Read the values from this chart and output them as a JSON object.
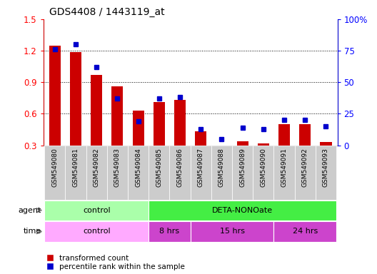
{
  "title": "GDS4408 / 1443119_at",
  "samples": [
    "GSM549080",
    "GSM549081",
    "GSM549082",
    "GSM549083",
    "GSM549084",
    "GSM549085",
    "GSM549086",
    "GSM549087",
    "GSM549088",
    "GSM549089",
    "GSM549090",
    "GSM549091",
    "GSM549092",
    "GSM549093"
  ],
  "transformed_count": [
    1.25,
    1.19,
    0.97,
    0.86,
    0.63,
    0.71,
    0.73,
    0.43,
    0.3,
    0.34,
    0.32,
    0.5,
    0.5,
    0.33
  ],
  "percentile_rank": [
    76,
    80,
    62,
    37,
    19,
    37,
    38,
    13,
    5,
    14,
    13,
    20,
    20,
    15
  ],
  "bar_color_red": "#cc0000",
  "bar_color_blue": "#0000cc",
  "ylim_left": [
    0.3,
    1.5
  ],
  "ylim_right": [
    0,
    100
  ],
  "yticks_left": [
    0.3,
    0.6,
    0.9,
    1.2,
    1.5
  ],
  "yticks_right": [
    0,
    25,
    50,
    75,
    100
  ],
  "ytick_labels_right": [
    "0",
    "25",
    "50",
    "75",
    "100%"
  ],
  "agent_groups": [
    {
      "label": "control",
      "start": 0,
      "end": 5,
      "color": "#aaffaa"
    },
    {
      "label": "DETA-NONOate",
      "start": 5,
      "end": 14,
      "color": "#44ee44"
    }
  ],
  "time_groups": [
    {
      "label": "control",
      "start": 0,
      "end": 5,
      "color": "#ffaaff"
    },
    {
      "label": "8 hrs",
      "start": 5,
      "end": 7,
      "color": "#cc44cc"
    },
    {
      "label": "15 hrs",
      "start": 7,
      "end": 11,
      "color": "#cc44cc"
    },
    {
      "label": "24 hrs",
      "start": 11,
      "end": 14,
      "color": "#cc44cc"
    }
  ],
  "legend_red_label": "transformed count",
  "legend_blue_label": "percentile rank within the sample",
  "bar_width": 0.55,
  "title_fontsize": 10,
  "sample_bg_color": "#cccccc",
  "sample_sep_color": "#999999"
}
